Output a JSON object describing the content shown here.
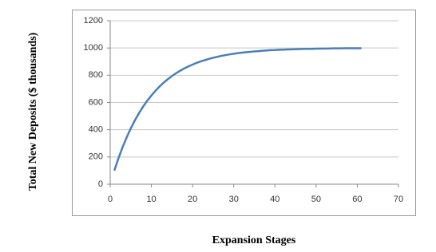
{
  "chart_data": {
    "type": "line",
    "x_label": "Expansion Stages",
    "y_label": "Total New Deposits ($ thousands)",
    "x": [
      1,
      2,
      3,
      4,
      5,
      6,
      7,
      8,
      9,
      10,
      11,
      12,
      13,
      14,
      15,
      16,
      17,
      18,
      19,
      20,
      21,
      22,
      23,
      24,
      25,
      26,
      27,
      28,
      29,
      30,
      31,
      32,
      33,
      34,
      35,
      36,
      37,
      38,
      39,
      40,
      41,
      42,
      43,
      44,
      45,
      46,
      47,
      48,
      49,
      50,
      51,
      52,
      53,
      54,
      55,
      56,
      57,
      58,
      59,
      60,
      61
    ],
    "series": [
      {
        "color": "#4a7ebb",
        "values": [
          100,
          190,
          271,
          344,
          410,
          469,
          522,
          570,
          613,
          651,
          686,
          718,
          746,
          771,
          794,
          815,
          833,
          850,
          865,
          878,
          891,
          902,
          911,
          920,
          928,
          935,
          942,
          948,
          953,
          958,
          962,
          966,
          969,
          972,
          975,
          977,
          980,
          982,
          984,
          985,
          987,
          988,
          989,
          990,
          991,
          992,
          993,
          994,
          994,
          995,
          995,
          996,
          996,
          997,
          997,
          997,
          998,
          998,
          998,
          998,
          998
        ]
      }
    ],
    "xlim": [
      0,
      70
    ],
    "xticks": [
      0,
      10,
      20,
      30,
      40,
      50,
      60,
      70
    ],
    "ylim": [
      0,
      1200
    ],
    "yticks": [
      0,
      200,
      400,
      600,
      800,
      1000,
      1200
    ],
    "grid": true
  }
}
